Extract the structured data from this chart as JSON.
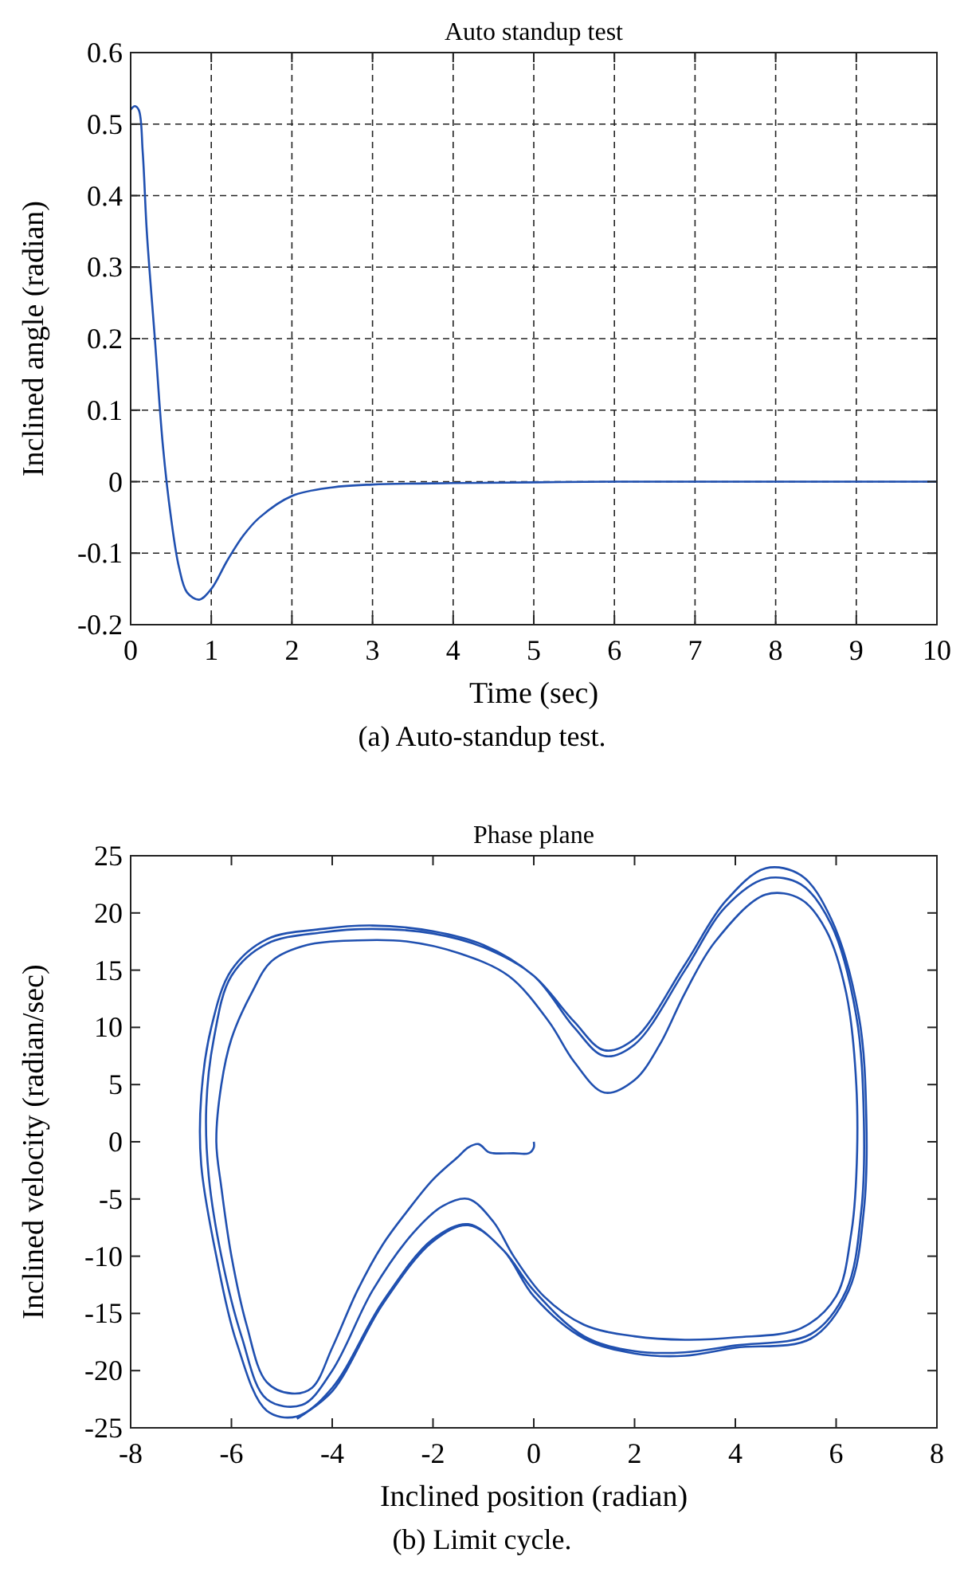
{
  "chart_data": [
    {
      "type": "line",
      "title": "Auto standup test",
      "xlabel": "Time (sec)",
      "ylabel": "Inclined angle (radian)",
      "annotations": [
        "(a) Auto-standup test."
      ],
      "grid": true,
      "xlim": [
        0,
        10
      ],
      "ylim": [
        -0.2,
        0.6
      ],
      "xticks": [
        0,
        1,
        2,
        3,
        4,
        5,
        6,
        7,
        8,
        9,
        10
      ],
      "yticks": [
        -0.2,
        -0.1,
        0,
        0.1,
        0.2,
        0.3,
        0.4,
        0.5,
        0.6
      ],
      "series": [
        {
          "color": "#2050b0",
          "x": [
            0,
            0.05,
            0.1,
            0.15,
            0.2,
            0.3,
            0.4,
            0.5,
            0.6,
            0.7,
            0.85,
            1.0,
            1.2,
            1.4,
            1.6,
            2.0,
            2.5,
            3,
            4,
            5,
            6,
            8,
            10
          ],
          "values": [
            0.52,
            0.525,
            0.52,
            0.46,
            0.35,
            0.2,
            0.05,
            -0.05,
            -0.12,
            -0.155,
            -0.165,
            -0.15,
            -0.11,
            -0.075,
            -0.05,
            -0.02,
            -0.008,
            -0.004,
            -0.002,
            -0.001,
            0,
            0,
            0
          ]
        }
      ]
    },
    {
      "type": "line",
      "title": "Phase plane",
      "xlabel": "Inclined position (radian)",
      "ylabel": "Inclined velocity (radian/sec)",
      "annotations": [
        "(b) Limit cycle."
      ],
      "grid": false,
      "xlim": [
        -8,
        8
      ],
      "ylim": [
        -25,
        25
      ],
      "xticks": [
        -8,
        -6,
        -4,
        -2,
        0,
        2,
        4,
        6,
        8
      ],
      "yticks": [
        -25,
        -20,
        -15,
        -10,
        -5,
        0,
        5,
        10,
        15,
        20,
        25
      ],
      "series": [
        {
          "color": "#2050b0",
          "x": [
            0,
            0,
            -0.1,
            -0.4,
            -0.8,
            -0.9,
            -1.1,
            -1.3,
            -1.5,
            -2.0,
            -2.5,
            -3.0,
            -3.5,
            -4.0,
            -4.4,
            -4.8,
            -5.3,
            -5.7,
            -6.0,
            -6.2,
            -6.3,
            -6.2,
            -6.0,
            -5.6,
            -5.2,
            -4.5,
            -3.5,
            -2.5,
            -1.5,
            -0.5,
            0.3,
            0.8,
            1.4,
            2.0,
            2.5,
            3.0,
            3.6,
            4.6,
            5.3,
            5.8,
            6.2,
            6.4,
            6.4,
            6.3,
            6.0,
            5.3,
            4.0,
            3.0,
            2.0,
            1.0,
            0.2,
            -0.4,
            -0.8,
            -1.3,
            -1.8,
            -2.4,
            -3.2,
            -4.0,
            -4.6,
            -5.3,
            -5.8,
            -6.2,
            -6.45,
            -6.5,
            -6.35,
            -6.0,
            -5.3,
            -4.2,
            -3.2,
            -2.0,
            -1.0,
            0,
            0.8,
            1.4,
            2.0,
            3.0,
            3.8,
            4.6,
            5.3,
            5.9,
            6.4,
            6.55,
            6.5,
            6.2,
            5.5,
            4.0,
            3.0,
            2.0,
            1.0,
            0.0,
            -0.6,
            -1.3,
            -2.0,
            -3.0,
            -4.0,
            -4.7,
            -5.3,
            -5.9,
            -6.3,
            -6.6,
            -6.6,
            -6.4,
            -6.0,
            -5.3,
            -4.2,
            -3.2,
            -2.0,
            -1.0,
            0,
            0.8,
            1.4,
            2.0,
            3.0,
            3.8,
            4.6,
            5.3,
            5.9,
            6.45,
            6.6,
            6.55,
            6.25,
            5.5,
            4.0,
            3.0,
            2.0,
            1.0,
            0.0,
            -0.6,
            -1.3,
            -2.0,
            -3.0,
            -4.0,
            -4.7
          ],
          "values": [
            0,
            -0.5,
            -1,
            -1.0,
            -1.0,
            -0.9,
            -0.2,
            -0.5,
            -1.3,
            -3.3,
            -6,
            -9,
            -13,
            -18,
            -21.5,
            -22,
            -21,
            -16,
            -10,
            -4,
            0,
            5,
            9,
            13,
            15.8,
            17.2,
            17.6,
            17.5,
            16.5,
            14.5,
            10.5,
            7,
            4.3,
            5.4,
            8.5,
            13,
            17.5,
            21.6,
            21.2,
            18.5,
            13,
            5,
            -3,
            -8,
            -13.5,
            -16.3,
            -17.1,
            -17.3,
            -17,
            -16,
            -13.5,
            -10,
            -7,
            -5.0,
            -5.6,
            -8,
            -13,
            -20,
            -23,
            -22.5,
            -17,
            -10,
            -3,
            3,
            9,
            14.5,
            17.3,
            18.3,
            18.6,
            18.2,
            17,
            14.5,
            10,
            7.5,
            8.5,
            15,
            20.5,
            23,
            22.5,
            19,
            11,
            2,
            -6,
            -13,
            -16.8,
            -17.8,
            -18.4,
            -18.3,
            -17,
            -13,
            -9.5,
            -7.2,
            -8.5,
            -14,
            -21.5,
            -24,
            -23.5,
            -17.5,
            -10,
            -2,
            4,
            10,
            15,
            17.7,
            18.6,
            18.9,
            18.4,
            17.2,
            14.5,
            10.5,
            8.0,
            9,
            15.5,
            21,
            23.9,
            23.3,
            19.5,
            11,
            2,
            -6,
            -13,
            -17.2,
            -18,
            -18.7,
            -18.5,
            -17.2,
            -13.5,
            -9.5,
            -7.3,
            -8.7,
            -14.2,
            -21.8,
            -24.2
          ]
        }
      ]
    }
  ]
}
